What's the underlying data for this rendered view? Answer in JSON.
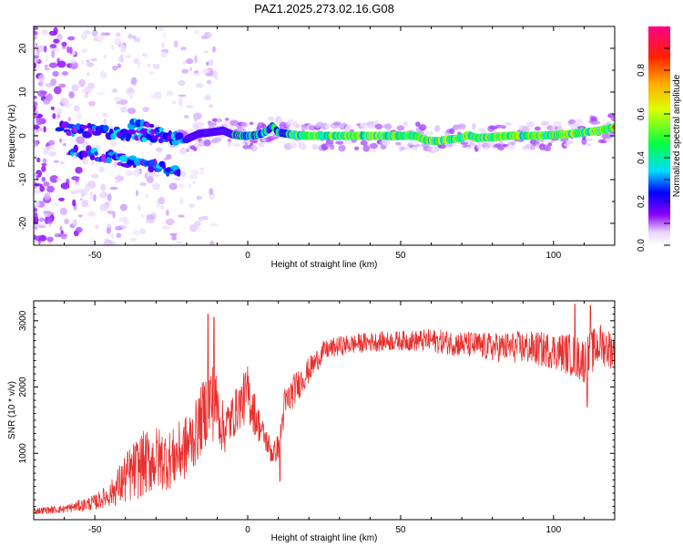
{
  "title": "PAZ1.2025.273.02.16.G08",
  "chart_data": [
    {
      "type": "heatmap",
      "name": "spectrogram",
      "xlabel": "Height of straight line (km)",
      "ylabel": "Frequency (Hz)",
      "xlim": [
        -70,
        120
      ],
      "ylim": [
        -25,
        25
      ],
      "xticks": [
        -50,
        0,
        50,
        100
      ],
      "yticks": [
        -20,
        -10,
        0,
        10,
        20
      ],
      "ridge": {
        "x": [
          -20,
          -16,
          -12,
          -8,
          -5,
          -2,
          0,
          3,
          5,
          7,
          8,
          10,
          15,
          20,
          30,
          40,
          50,
          55,
          58,
          62,
          66,
          70,
          72,
          75,
          80,
          85,
          90,
          95,
          100,
          105,
          110,
          115,
          120
        ],
        "freq": [
          -0.8,
          0.5,
          0.8,
          1.2,
          0.3,
          0.0,
          0.0,
          0.2,
          0.6,
          1.5,
          2.3,
          0.8,
          0.2,
          0.0,
          0.0,
          0.0,
          0.0,
          0.0,
          -1.0,
          -1.2,
          -0.8,
          -0.5,
          0.2,
          -0.5,
          -0.3,
          0.0,
          0.0,
          0.0,
          0.2,
          0.4,
          0.8,
          1.2,
          2.0
        ]
      },
      "branches": [
        {
          "x": [
            -62,
            -20
          ],
          "freq": [
            1.8,
            -0.8
          ]
        },
        {
          "x": [
            -58,
            -22
          ],
          "freq": [
            -3.2,
            -8.0
          ]
        },
        {
          "x": [
            -38,
            -22
          ],
          "freq": [
            3.0,
            -0.5
          ]
        }
      ],
      "colorbar": {
        "label": "Normalized spectral amplitude",
        "range": [
          0,
          1
        ],
        "ticks": [
          0.0,
          0.2,
          0.4,
          0.6,
          0.8
        ]
      }
    },
    {
      "type": "line",
      "name": "snr",
      "xlabel": "Height of straight line (km)",
      "ylabel": "SNR (10 * v/v)",
      "xlim": [
        -70,
        120
      ],
      "ylim": [
        0,
        3300
      ],
      "xticks": [
        -50,
        0,
        50,
        100
      ],
      "yticks": [
        1000,
        2000,
        3000
      ],
      "color": "#e8302e",
      "envelope": {
        "x": [
          -70,
          -60,
          -50,
          -45,
          -40,
          -35,
          -30,
          -25,
          -20,
          -17,
          -14,
          -12,
          -10,
          -8,
          -5,
          -3,
          0,
          3,
          5,
          8,
          10,
          12,
          15,
          20,
          25,
          30,
          35,
          40,
          50,
          60,
          70,
          80,
          90,
          100,
          105,
          110,
          115,
          120
        ],
        "mean": [
          130,
          160,
          260,
          380,
          620,
          820,
          920,
          900,
          1100,
          1300,
          1650,
          1800,
          1700,
          1350,
          1550,
          1700,
          1900,
          1500,
          1300,
          1000,
          1100,
          1700,
          1950,
          2250,
          2550,
          2620,
          2650,
          2680,
          2700,
          2700,
          2650,
          2600,
          2600,
          2550,
          2500,
          2400,
          2650,
          2550
        ],
        "amp": [
          50,
          60,
          120,
          180,
          400,
          500,
          500,
          450,
          500,
          500,
          550,
          650,
          500,
          400,
          350,
          350,
          450,
          300,
          200,
          200,
          200,
          300,
          250,
          200,
          150,
          150,
          150,
          150,
          150,
          180,
          200,
          220,
          250,
          280,
          320,
          350,
          320,
          300
        ]
      },
      "spikes": [
        {
          "x": -13,
          "y": 3100
        },
        {
          "x": -11,
          "y": 3050
        },
        {
          "x": 9,
          "y": 1000
        },
        {
          "x": 10.5,
          "y": 580
        },
        {
          "x": 107,
          "y": 3250
        },
        {
          "x": 112,
          "y": 3230
        },
        {
          "x": 111,
          "y": 1700
        }
      ]
    }
  ]
}
